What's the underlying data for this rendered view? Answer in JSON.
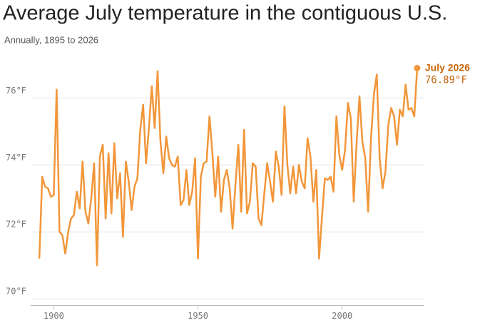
{
  "chart_data": {
    "type": "line",
    "title": "Average July temperature in the contiguous U.S.",
    "subtitle": "Annually, 1895 to 2026",
    "annotation": {
      "title": "July 2026",
      "text": "76.89°F"
    },
    "color": "#f2963a",
    "x": [
      1895,
      1896,
      1897,
      1898,
      1899,
      1900,
      1901,
      1902,
      1903,
      1904,
      1905,
      1906,
      1907,
      1908,
      1909,
      1910,
      1911,
      1912,
      1913,
      1914,
      1915,
      1916,
      1917,
      1918,
      1919,
      1920,
      1921,
      1922,
      1923,
      1924,
      1925,
      1926,
      1927,
      1928,
      1929,
      1930,
      1931,
      1932,
      1933,
      1934,
      1935,
      1936,
      1937,
      1938,
      1939,
      1940,
      1941,
      1942,
      1943,
      1944,
      1945,
      1946,
      1947,
      1948,
      1949,
      1950,
      1951,
      1952,
      1953,
      1954,
      1955,
      1956,
      1957,
      1958,
      1959,
      1960,
      1961,
      1962,
      1963,
      1964,
      1965,
      1966,
      1967,
      1968,
      1969,
      1970,
      1971,
      1972,
      1973,
      1974,
      1975,
      1976,
      1977,
      1978,
      1979,
      1980,
      1981,
      1982,
      1983,
      1984,
      1985,
      1986,
      1987,
      1988,
      1989,
      1990,
      1991,
      1992,
      1993,
      1994,
      1995,
      1996,
      1997,
      1998,
      1999,
      2000,
      2001,
      2002,
      2003,
      2004,
      2005,
      2006,
      2007,
      2008,
      2009,
      2010,
      2011,
      2012,
      2013,
      2014,
      2015,
      2016,
      2017,
      2018,
      2019,
      2020,
      2021,
      2022,
      2023,
      2024,
      2025,
      2026
    ],
    "values": [
      71.2,
      73.65,
      73.35,
      73.3,
      73.05,
      73.1,
      76.25,
      72.0,
      71.9,
      71.35,
      72.0,
      72.4,
      72.5,
      73.2,
      72.7,
      74.1,
      72.6,
      72.25,
      73.0,
      74.05,
      71.0,
      74.25,
      74.6,
      72.4,
      74.35,
      72.55,
      74.65,
      73.0,
      73.75,
      71.85,
      74.1,
      73.5,
      72.65,
      73.35,
      73.6,
      75.05,
      75.8,
      74.05,
      75.1,
      76.35,
      75.1,
      76.8,
      74.7,
      73.75,
      74.85,
      74.2,
      74.0,
      73.95,
      74.25,
      72.8,
      72.95,
      73.85,
      72.8,
      73.2,
      74.2,
      71.2,
      73.65,
      74.05,
      74.1,
      75.45,
      74.35,
      73.05,
      74.25,
      72.6,
      73.55,
      73.85,
      73.3,
      72.1,
      73.4,
      74.6,
      72.6,
      75.05,
      72.55,
      72.9,
      74.05,
      73.95,
      72.4,
      72.2,
      73.15,
      74.05,
      73.5,
      72.9,
      74.4,
      73.95,
      73.1,
      75.75,
      74.0,
      73.15,
      73.95,
      73.15,
      74.0,
      73.5,
      73.3,
      74.8,
      74.25,
      72.9,
      73.85,
      71.2,
      72.45,
      73.6,
      73.55,
      73.65,
      73.2,
      75.45,
      74.3,
      73.85,
      74.45,
      75.85,
      75.4,
      72.9,
      74.65,
      76.05,
      74.7,
      74.2,
      72.6,
      74.8,
      76.1,
      76.7,
      74.2,
      73.3,
      73.8,
      75.2,
      75.7,
      75.45,
      74.6,
      75.65,
      75.45,
      76.4,
      75.65,
      75.7,
      75.45,
      76.89
    ],
    "xlim": [
      1892,
      2028.5
    ],
    "xticks": [
      1900,
      1950,
      2000
    ],
    "ylim": [
      69.8,
      77.2
    ],
    "yticks": [
      {
        "value": 70,
        "label": "70°F"
      },
      {
        "value": 72,
        "label": "72°F"
      },
      {
        "value": 74,
        "label": "74°F"
      },
      {
        "value": 76,
        "label": "76°F"
      }
    ],
    "grid": true
  }
}
